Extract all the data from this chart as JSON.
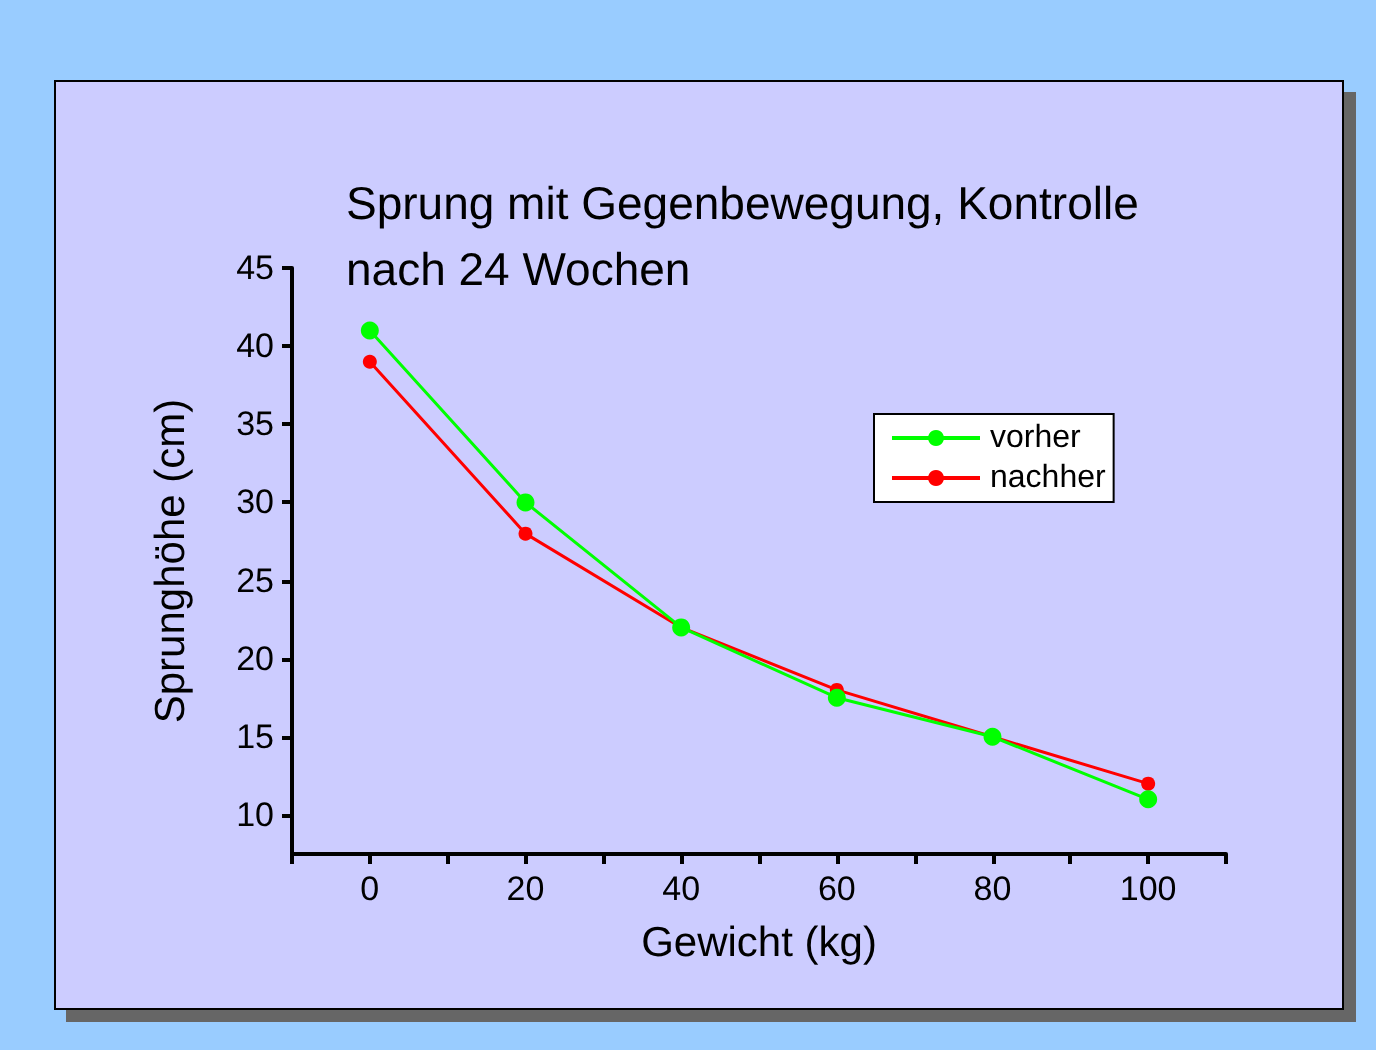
{
  "chart_data": {
    "type": "line",
    "title": "Sprung mit Gegenbewegung, Kontrolle\nnach 24 Wochen",
    "xlabel": "Gewicht (kg)",
    "ylabel": "Sprunghöhe (cm)",
    "x": [
      0,
      20,
      40,
      60,
      80,
      100
    ],
    "series": [
      {
        "name": "vorher",
        "color": "#00ff00",
        "values": [
          41,
          30,
          22,
          17.5,
          15,
          11
        ]
      },
      {
        "name": "nachher",
        "color": "#ff0000",
        "values": [
          39,
          28,
          22,
          18,
          15,
          12
        ]
      }
    ],
    "xlim": [
      -10,
      110
    ],
    "xticks": [
      {
        "value": -10,
        "label": null
      },
      0,
      {
        "value": 10,
        "label": null
      },
      20,
      {
        "value": 30,
        "label": null
      },
      40,
      {
        "value": 50,
        "label": null
      },
      60,
      {
        "value": 70,
        "label": null
      },
      80,
      {
        "value": 90,
        "label": null
      },
      100,
      {
        "value": 110,
        "label": null
      }
    ],
    "ylim": [
      7.5,
      45
    ],
    "yticks": [
      10,
      15,
      20,
      25,
      30,
      35,
      40,
      45
    ],
    "grid": false,
    "legend": "top right",
    "marker": "circle",
    "line_style": "solid"
  }
}
